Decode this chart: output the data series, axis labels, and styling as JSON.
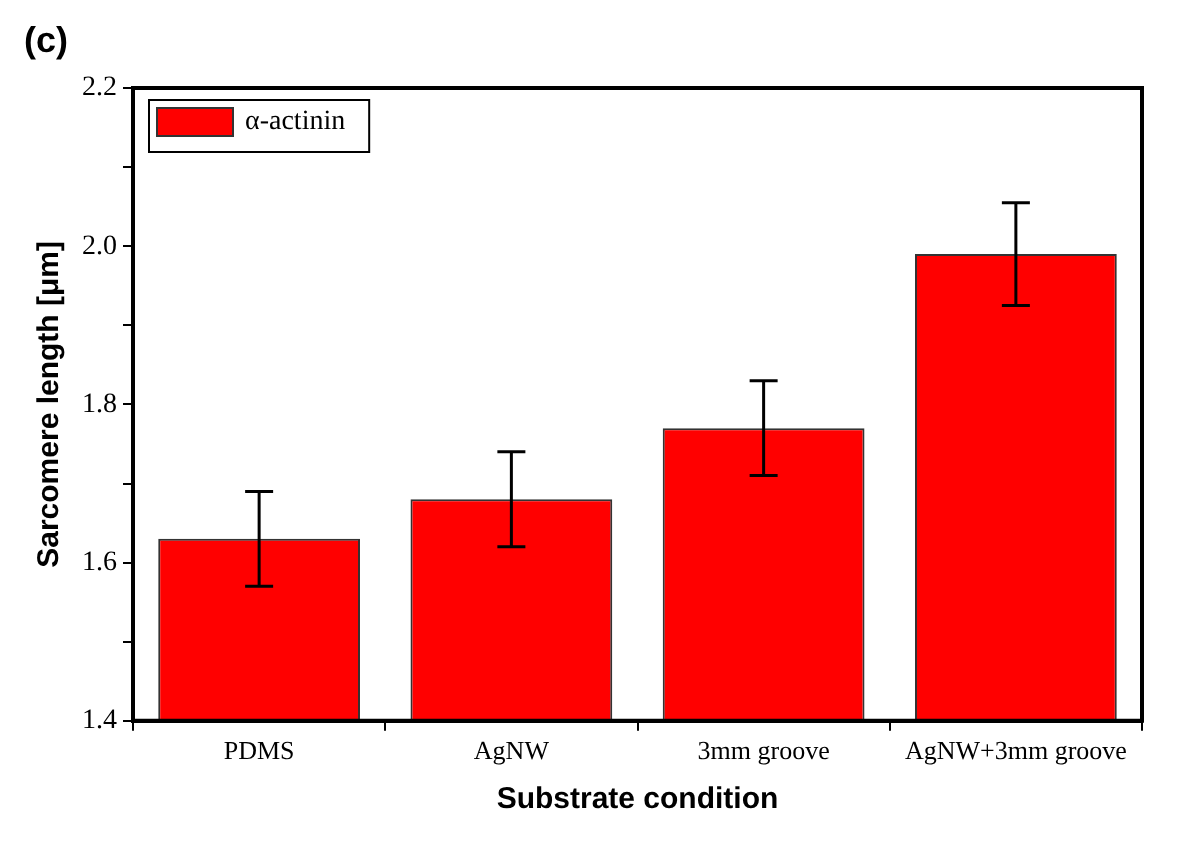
{
  "chart_data": {
    "type": "bar",
    "xlabel": "Substrate condition",
    "ylabel": "Sarcomere length [μm]",
    "annotations": [
      "(c)"
    ],
    "categories": [
      "PDMS",
      "AgNW",
      "3mm groove",
      "AgNW+3mm groove"
    ],
    "series": [
      {
        "name": "α-actinin",
        "color": "#ff0000",
        "values": [
          1.63,
          1.68,
          1.77,
          1.99
        ],
        "errors": [
          0.06,
          0.06,
          0.06,
          0.065
        ]
      }
    ],
    "ylim": [
      1.4,
      2.2
    ],
    "yticks": [
      1.4,
      {
        "value": 1.5,
        "label": null
      },
      1.6,
      {
        "value": 1.7,
        "label": null
      },
      1.8,
      {
        "value": 1.9,
        "label": null
      },
      {
        "value": 2,
        "label": "2.0"
      },
      {
        "value": 2.1,
        "label": null
      },
      2.2
    ],
    "grid": false,
    "legend": "top left"
  }
}
